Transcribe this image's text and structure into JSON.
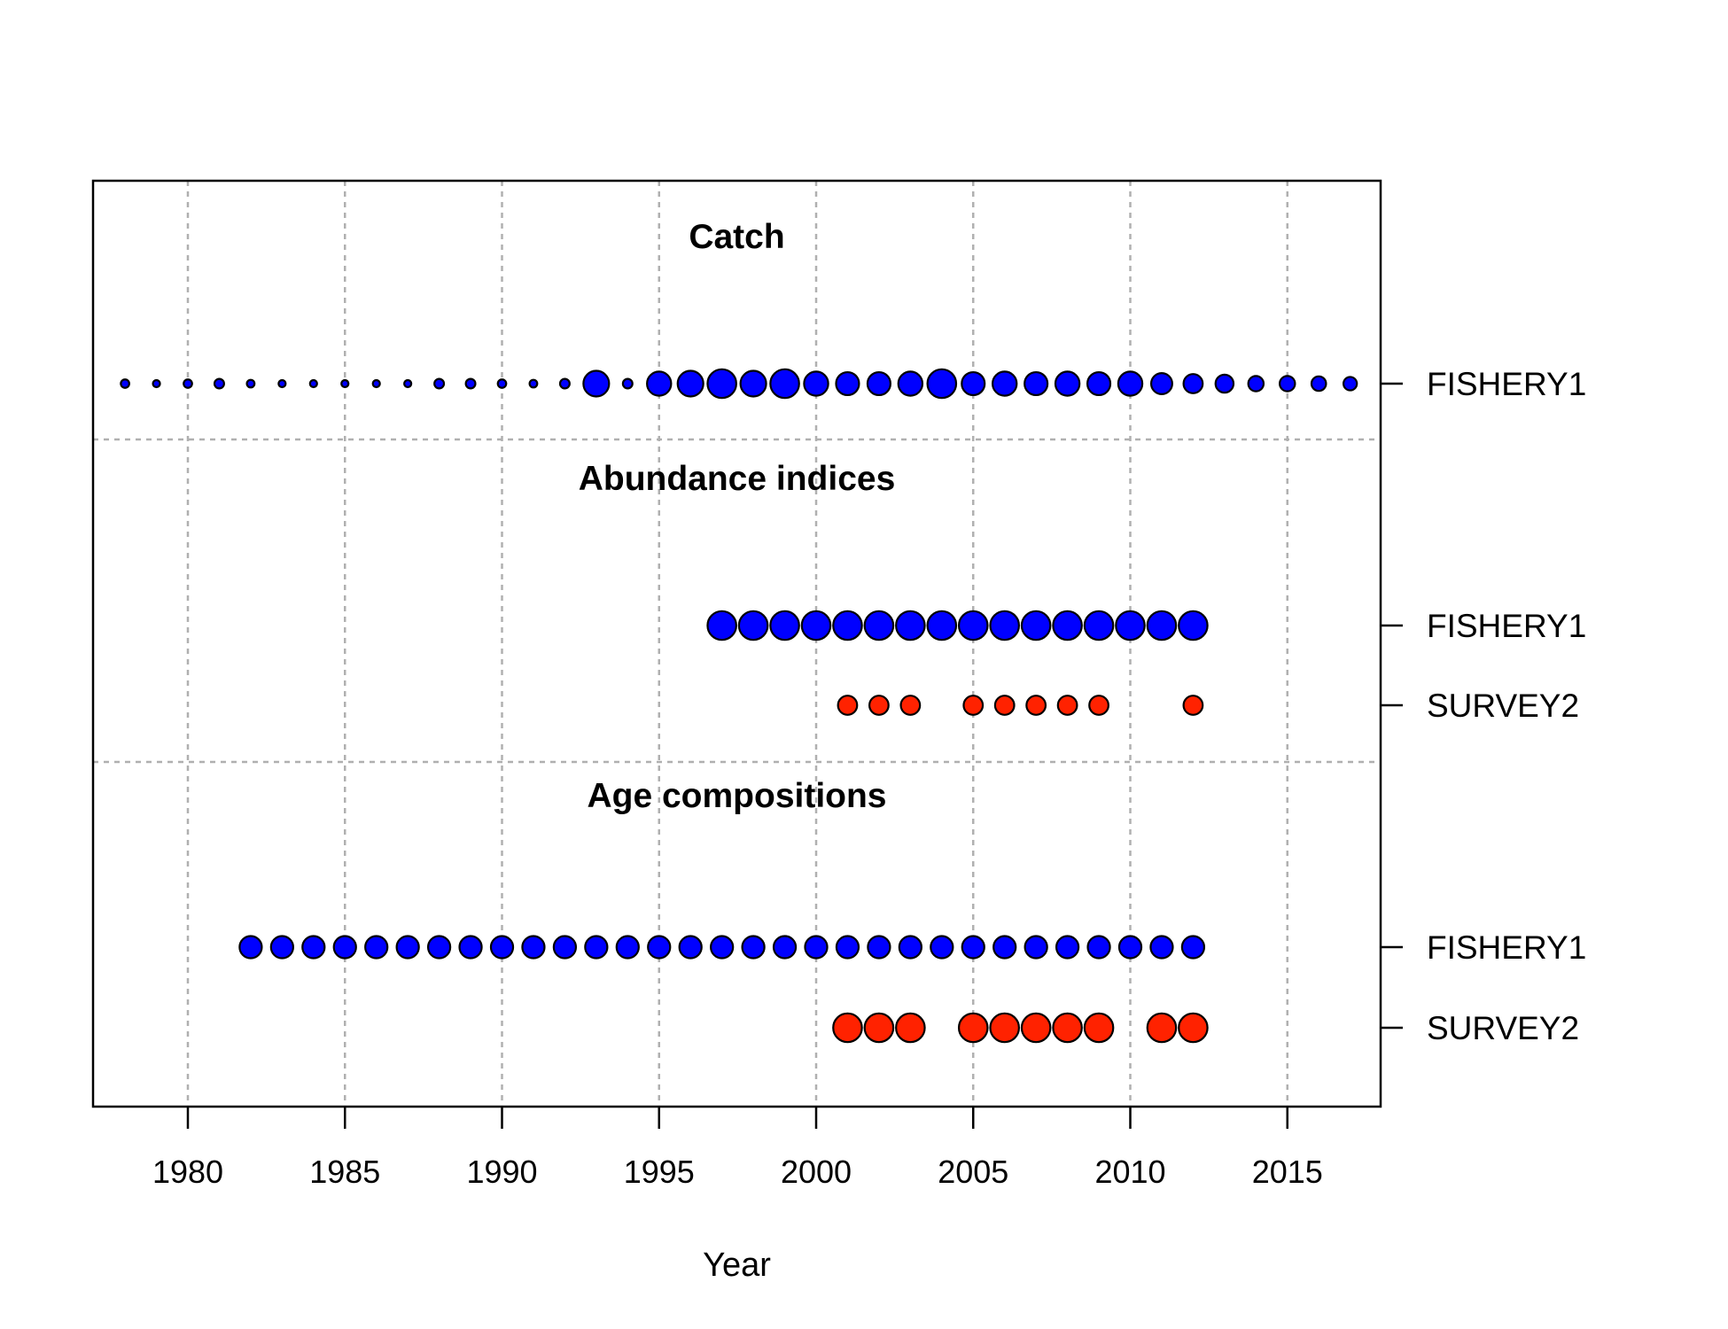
{
  "chart_data": {
    "type": "scatter",
    "xlabel": "Year",
    "ylabel": "",
    "xlim": [
      1977,
      2018
    ],
    "xticks": [
      1980,
      1985,
      1990,
      1995,
      2000,
      2005,
      2010,
      2015
    ],
    "grid": true,
    "colors": {
      "fishery": "#0000ff",
      "survey": "#ff2200"
    },
    "sections": [
      {
        "title": "Catch",
        "rows": [
          {
            "label": "FISHERY1",
            "color": "#0000ff",
            "points": [
              {
                "year": 1978,
                "size": 0.22
              },
              {
                "year": 1979,
                "size": 0.18
              },
              {
                "year": 1980,
                "size": 0.22
              },
              {
                "year": 1981,
                "size": 0.25
              },
              {
                "year": 1982,
                "size": 0.2
              },
              {
                "year": 1983,
                "size": 0.18
              },
              {
                "year": 1984,
                "size": 0.16
              },
              {
                "year": 1985,
                "size": 0.18
              },
              {
                "year": 1986,
                "size": 0.16
              },
              {
                "year": 1987,
                "size": 0.18
              },
              {
                "year": 1988,
                "size": 0.25
              },
              {
                "year": 1989,
                "size": 0.25
              },
              {
                "year": 1990,
                "size": 0.22
              },
              {
                "year": 1991,
                "size": 0.2
              },
              {
                "year": 1992,
                "size": 0.25
              },
              {
                "year": 1993,
                "size": 0.67
              },
              {
                "year": 1994,
                "size": 0.25
              },
              {
                "year": 1995,
                "size": 0.63
              },
              {
                "year": 1996,
                "size": 0.67
              },
              {
                "year": 1997,
                "size": 0.75
              },
              {
                "year": 1998,
                "size": 0.67
              },
              {
                "year": 1999,
                "size": 0.75
              },
              {
                "year": 2000,
                "size": 0.63
              },
              {
                "year": 2001,
                "size": 0.6
              },
              {
                "year": 2002,
                "size": 0.6
              },
              {
                "year": 2003,
                "size": 0.63
              },
              {
                "year": 2004,
                "size": 0.75
              },
              {
                "year": 2005,
                "size": 0.6
              },
              {
                "year": 2006,
                "size": 0.63
              },
              {
                "year": 2007,
                "size": 0.6
              },
              {
                "year": 2008,
                "size": 0.63
              },
              {
                "year": 2009,
                "size": 0.6
              },
              {
                "year": 2010,
                "size": 0.63
              },
              {
                "year": 2011,
                "size": 0.55
              },
              {
                "year": 2012,
                "size": 0.5
              },
              {
                "year": 2013,
                "size": 0.47
              },
              {
                "year": 2014,
                "size": 0.4
              },
              {
                "year": 2015,
                "size": 0.4
              },
              {
                "year": 2016,
                "size": 0.38
              },
              {
                "year": 2017,
                "size": 0.35
              }
            ]
          }
        ]
      },
      {
        "title": "Abundance indices",
        "rows": [
          {
            "label": "FISHERY1",
            "color": "#0000ff",
            "points": [
              {
                "year": 1997,
                "size": 0.75
              },
              {
                "year": 1998,
                "size": 0.75
              },
              {
                "year": 1999,
                "size": 0.75
              },
              {
                "year": 2000,
                "size": 0.75
              },
              {
                "year": 2001,
                "size": 0.75
              },
              {
                "year": 2002,
                "size": 0.75
              },
              {
                "year": 2003,
                "size": 0.75
              },
              {
                "year": 2004,
                "size": 0.75
              },
              {
                "year": 2005,
                "size": 0.75
              },
              {
                "year": 2006,
                "size": 0.75
              },
              {
                "year": 2007,
                "size": 0.75
              },
              {
                "year": 2008,
                "size": 0.75
              },
              {
                "year": 2009,
                "size": 0.75
              },
              {
                "year": 2010,
                "size": 0.75
              },
              {
                "year": 2011,
                "size": 0.75
              },
              {
                "year": 2012,
                "size": 0.75
              }
            ]
          },
          {
            "label": "SURVEY2",
            "color": "#ff2200",
            "points": [
              {
                "year": 2001,
                "size": 0.5
              },
              {
                "year": 2002,
                "size": 0.5
              },
              {
                "year": 2003,
                "size": 0.5
              },
              {
                "year": 2005,
                "size": 0.5
              },
              {
                "year": 2006,
                "size": 0.5
              },
              {
                "year": 2007,
                "size": 0.5
              },
              {
                "year": 2008,
                "size": 0.5
              },
              {
                "year": 2009,
                "size": 0.5
              },
              {
                "year": 2012,
                "size": 0.5
              }
            ]
          }
        ]
      },
      {
        "title": "Age compositions",
        "rows": [
          {
            "label": "FISHERY1",
            "color": "#0000ff",
            "points": [
              {
                "year": 1982,
                "size": 0.58
              },
              {
                "year": 1983,
                "size": 0.58
              },
              {
                "year": 1984,
                "size": 0.58
              },
              {
                "year": 1985,
                "size": 0.58
              },
              {
                "year": 1986,
                "size": 0.58
              },
              {
                "year": 1987,
                "size": 0.58
              },
              {
                "year": 1988,
                "size": 0.58
              },
              {
                "year": 1989,
                "size": 0.58
              },
              {
                "year": 1990,
                "size": 0.58
              },
              {
                "year": 1991,
                "size": 0.58
              },
              {
                "year": 1992,
                "size": 0.58
              },
              {
                "year": 1993,
                "size": 0.58
              },
              {
                "year": 1994,
                "size": 0.58
              },
              {
                "year": 1995,
                "size": 0.58
              },
              {
                "year": 1996,
                "size": 0.58
              },
              {
                "year": 1997,
                "size": 0.58
              },
              {
                "year": 1998,
                "size": 0.58
              },
              {
                "year": 1999,
                "size": 0.58
              },
              {
                "year": 2000,
                "size": 0.58
              },
              {
                "year": 2001,
                "size": 0.58
              },
              {
                "year": 2002,
                "size": 0.58
              },
              {
                "year": 2003,
                "size": 0.58
              },
              {
                "year": 2004,
                "size": 0.58
              },
              {
                "year": 2005,
                "size": 0.58
              },
              {
                "year": 2006,
                "size": 0.58
              },
              {
                "year": 2007,
                "size": 0.58
              },
              {
                "year": 2008,
                "size": 0.58
              },
              {
                "year": 2009,
                "size": 0.58
              },
              {
                "year": 2010,
                "size": 0.58
              },
              {
                "year": 2011,
                "size": 0.58
              },
              {
                "year": 2012,
                "size": 0.58
              }
            ]
          },
          {
            "label": "SURVEY2",
            "color": "#ff2200",
            "points": [
              {
                "year": 2001,
                "size": 0.75
              },
              {
                "year": 2002,
                "size": 0.75
              },
              {
                "year": 2003,
                "size": 0.75
              },
              {
                "year": 2005,
                "size": 0.75
              },
              {
                "year": 2006,
                "size": 0.75
              },
              {
                "year": 2007,
                "size": 0.75
              },
              {
                "year": 2008,
                "size": 0.75
              },
              {
                "year": 2009,
                "size": 0.75
              },
              {
                "year": 2011,
                "size": 0.75
              },
              {
                "year": 2012,
                "size": 0.75
              }
            ]
          }
        ]
      }
    ]
  }
}
